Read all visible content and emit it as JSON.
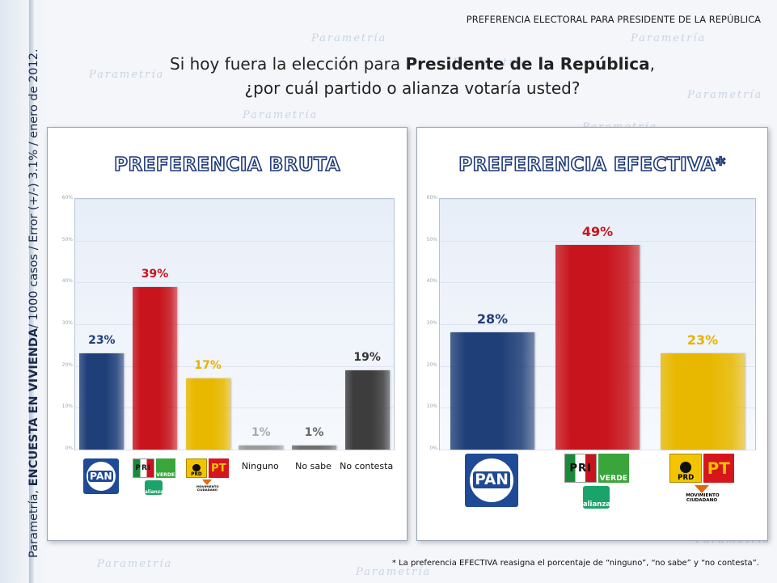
{
  "slide": {
    "header_title": "PREFERENCIA ELECTORAL PARA PRESIDENTE DE LA REPÚBLICA",
    "question_prefix": "Si hoy fuera la elección para ",
    "question_bold": "Presidente de la República",
    "question_suffix": ",",
    "question_line2": "¿por cuál partido o alianza votaría usted?",
    "caption_prefix": "Parametría, ",
    "caption_bold": "ENCUESTA EN VIVIENDA",
    "caption_suffix": "/ 1000 casos / Error (+/-) 3.1% / enero de 2012.",
    "footnote": "* La preferencia EFECTIVA reasigna el porcentaje de “ninguno”, “no sabe” y “no contesta”.",
    "watermark_text": "Parametría"
  },
  "logos": {
    "pan": "PAN",
    "pri": "PRI",
    "verde": "VERDE",
    "alianza": "alianza",
    "prd": "PRD",
    "pt": "PT",
    "movimiento": "MOVIMIENTO CIUDADANO"
  },
  "chart_data": [
    {
      "type": "bar",
      "title": "PREFERENCIA BRUTA",
      "categories": [
        "PAN",
        "PRI-PVEM",
        "PRD-PT-MC",
        "Ninguno",
        "No sabe",
        "No contesta"
      ],
      "values": [
        23,
        39,
        17,
        1,
        1,
        19
      ],
      "value_labels": [
        "23%",
        "39%",
        "17%",
        "1%",
        "1%",
        "19%"
      ],
      "ylim": [
        0,
        60
      ],
      "yticks": [
        "0%",
        "10%",
        "20%",
        "30%",
        "40%",
        "50%",
        "60%"
      ],
      "colors": [
        "#1f3f78",
        "#c8141c",
        "#e8b800",
        "#9a9a9a",
        "#6e6e6e",
        "#3d3d3d"
      ],
      "label_colors": [
        "#1f3f78",
        "#c8141c",
        "#e8b000",
        "#aaaaaa",
        "#666666",
        "#333333"
      ],
      "grid": true
    },
    {
      "type": "bar",
      "title": "PREFERENCIA EFECTIVA*",
      "categories": [
        "PAN",
        "PRI-PVEM",
        "PRD-PT-MC"
      ],
      "values": [
        28,
        49,
        23
      ],
      "value_labels": [
        "28%",
        "49%",
        "23%"
      ],
      "ylim": [
        0,
        60
      ],
      "yticks": [
        "0%",
        "10%",
        "20%",
        "30%",
        "40%",
        "50%",
        "60%"
      ],
      "colors": [
        "#1f3f78",
        "#c8141c",
        "#e8b800"
      ],
      "label_colors": [
        "#1f3f78",
        "#c8141c",
        "#e8b000"
      ],
      "grid": true
    }
  ]
}
